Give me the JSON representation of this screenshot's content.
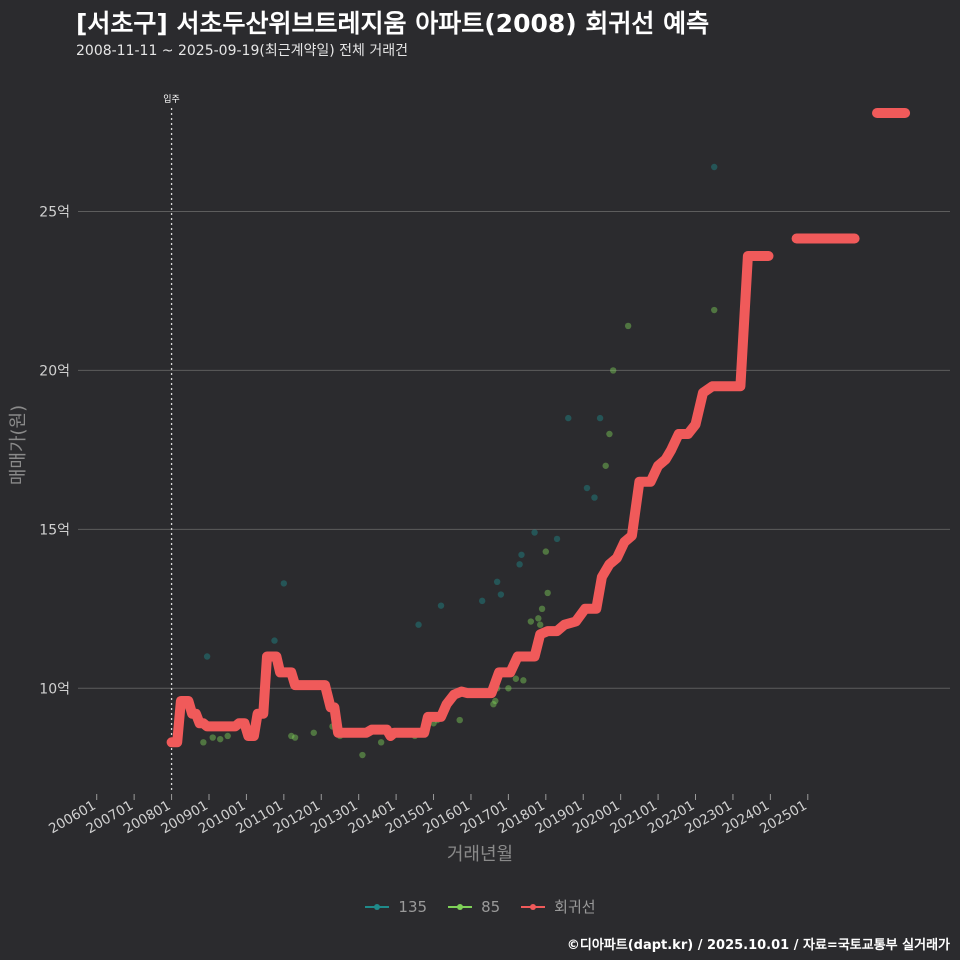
{
  "title": "[서초구] 서초두산위브트레지움 아파트(2008) 회귀선 예측",
  "subtitle": "2008-11-11 ~ 2025-09-19(최근계약일) 전체 거래건",
  "caption": "©디아파트(dapt.kr) / 2025.10.01 / 자료=국토교통부 실거래가",
  "colors": {
    "background": "#2b2b2e",
    "grid": "#5d5d5d",
    "series135": "#1f8a8a",
    "series85": "#7fd158",
    "regression": "#f05a5a"
  },
  "chart_data": {
    "type": "scatter",
    "xlabel": "거래년월",
    "ylabel": "매매가(원)",
    "x_ticks": [
      "200601",
      "200701",
      "200801",
      "200901",
      "201001",
      "201101",
      "201201",
      "201301",
      "201401",
      "201501",
      "201601",
      "201701",
      "201801",
      "201901",
      "202001",
      "202101",
      "202201",
      "202301",
      "202401",
      "202501"
    ],
    "y_ticks": [
      {
        "value": 10,
        "label": "10억"
      },
      {
        "value": 15,
        "label": "15억"
      },
      {
        "value": 20,
        "label": "20억"
      },
      {
        "value": 25,
        "label": "25억"
      }
    ],
    "xlim": [
      2005.5,
      2028.8
    ],
    "ylim": [
      6.8,
      29.2
    ],
    "annotation": {
      "x": 2008.0,
      "label": "입주"
    },
    "legend": [
      {
        "name": "135",
        "key": "series135"
      },
      {
        "name": "85",
        "key": "series85"
      },
      {
        "name": "회귀선",
        "key": "regression"
      }
    ],
    "series": [
      {
        "name": "135",
        "points": [
          [
            2008.95,
            11.0
          ],
          [
            2010.75,
            11.5
          ],
          [
            2011.0,
            13.3
          ],
          [
            2014.6,
            12.0
          ],
          [
            2015.2,
            12.6
          ],
          [
            2016.3,
            12.75
          ],
          [
            2016.7,
            13.35
          ],
          [
            2016.8,
            12.95
          ],
          [
            2017.3,
            13.9
          ],
          [
            2017.35,
            14.2
          ],
          [
            2017.7,
            14.9
          ],
          [
            2018.3,
            14.7
          ],
          [
            2018.6,
            18.5
          ],
          [
            2019.1,
            16.3
          ],
          [
            2019.3,
            16.0
          ],
          [
            2019.45,
            18.5
          ],
          [
            2022.5,
            26.4
          ]
        ]
      },
      {
        "name": "85",
        "points": [
          [
            2008.85,
            8.3
          ],
          [
            2009.1,
            8.45
          ],
          [
            2009.3,
            8.4
          ],
          [
            2009.5,
            8.5
          ],
          [
            2011.2,
            8.5
          ],
          [
            2011.3,
            8.45
          ],
          [
            2011.8,
            8.6
          ],
          [
            2012.3,
            8.8
          ],
          [
            2012.5,
            8.5
          ],
          [
            2013.1,
            7.9
          ],
          [
            2013.6,
            8.3
          ],
          [
            2014.5,
            8.5
          ],
          [
            2014.8,
            8.8
          ],
          [
            2015.0,
            8.9
          ],
          [
            2015.1,
            9.0
          ],
          [
            2015.7,
            9.0
          ],
          [
            2016.6,
            9.5
          ],
          [
            2016.65,
            9.6
          ],
          [
            2016.7,
            10.0
          ],
          [
            2017.0,
            10.0
          ],
          [
            2017.2,
            10.3
          ],
          [
            2017.4,
            10.25
          ],
          [
            2017.6,
            12.1
          ],
          [
            2017.8,
            12.2
          ],
          [
            2017.85,
            12.0
          ],
          [
            2017.9,
            12.5
          ],
          [
            2018.05,
            13.0
          ],
          [
            2018.0,
            14.3
          ],
          [
            2019.6,
            17.0
          ],
          [
            2019.7,
            18.0
          ],
          [
            2019.8,
            20.0
          ],
          [
            2020.2,
            21.4
          ],
          [
            2022.5,
            21.9
          ]
        ]
      },
      {
        "name": "회귀선",
        "segments": [
          [
            [
              2008.0,
              8.3
            ],
            [
              2008.15,
              8.3
            ],
            [
              2008.25,
              9.6
            ],
            [
              2008.45,
              9.6
            ],
            [
              2008.55,
              9.2
            ],
            [
              2008.65,
              9.2
            ],
            [
              2008.75,
              8.9
            ],
            [
              2008.85,
              8.9
            ],
            [
              2008.95,
              8.8
            ],
            [
              2009.7,
              8.8
            ],
            [
              2009.8,
              8.9
            ],
            [
              2009.95,
              8.9
            ],
            [
              2010.05,
              8.5
            ],
            [
              2010.2,
              8.5
            ],
            [
              2010.3,
              9.2
            ],
            [
              2010.45,
              9.2
            ],
            [
              2010.55,
              11.0
            ],
            [
              2010.8,
              11.0
            ],
            [
              2010.9,
              10.5
            ],
            [
              2011.2,
              10.5
            ],
            [
              2011.3,
              10.1
            ],
            [
              2012.1,
              10.1
            ],
            [
              2012.25,
              9.4
            ],
            [
              2012.35,
              9.4
            ],
            [
              2012.45,
              8.6
            ],
            [
              2013.2,
              8.6
            ],
            [
              2013.35,
              8.7
            ],
            [
              2013.75,
              8.7
            ],
            [
              2013.85,
              8.5
            ],
            [
              2013.95,
              8.6
            ],
            [
              2014.75,
              8.6
            ],
            [
              2014.85,
              9.1
            ],
            [
              2015.2,
              9.1
            ],
            [
              2015.35,
              9.5
            ],
            [
              2015.55,
              9.8
            ],
            [
              2015.75,
              9.9
            ],
            [
              2015.9,
              9.85
            ],
            [
              2016.55,
              9.85
            ],
            [
              2016.75,
              10.5
            ],
            [
              2017.05,
              10.5
            ],
            [
              2017.25,
              11.0
            ],
            [
              2017.55,
              11.0
            ],
            [
              2017.7,
              11.0
            ],
            [
              2017.85,
              11.7
            ],
            [
              2018.05,
              11.8
            ],
            [
              2018.3,
              11.8
            ],
            [
              2018.5,
              12.0
            ],
            [
              2018.8,
              12.1
            ],
            [
              2019.05,
              12.5
            ],
            [
              2019.35,
              12.5
            ],
            [
              2019.5,
              13.5
            ],
            [
              2019.7,
              13.9
            ],
            [
              2019.9,
              14.1
            ],
            [
              2020.1,
              14.6
            ],
            [
              2020.3,
              14.8
            ],
            [
              2020.5,
              16.5
            ],
            [
              2020.8,
              16.5
            ],
            [
              2021.0,
              17.0
            ],
            [
              2021.2,
              17.2
            ],
            [
              2021.35,
              17.5
            ],
            [
              2021.55,
              18.0
            ],
            [
              2021.8,
              18.0
            ],
            [
              2022.0,
              18.3
            ],
            [
              2022.2,
              19.3
            ],
            [
              2022.45,
              19.5
            ],
            [
              2023.2,
              19.5
            ],
            [
              2023.4,
              23.6
            ],
            [
              2023.95,
              23.6
            ]
          ],
          [
            [
              2024.7,
              24.15
            ],
            [
              2026.25,
              24.15
            ]
          ],
          [
            [
              2026.85,
              28.1
            ],
            [
              2027.6,
              28.1
            ]
          ]
        ]
      }
    ]
  }
}
